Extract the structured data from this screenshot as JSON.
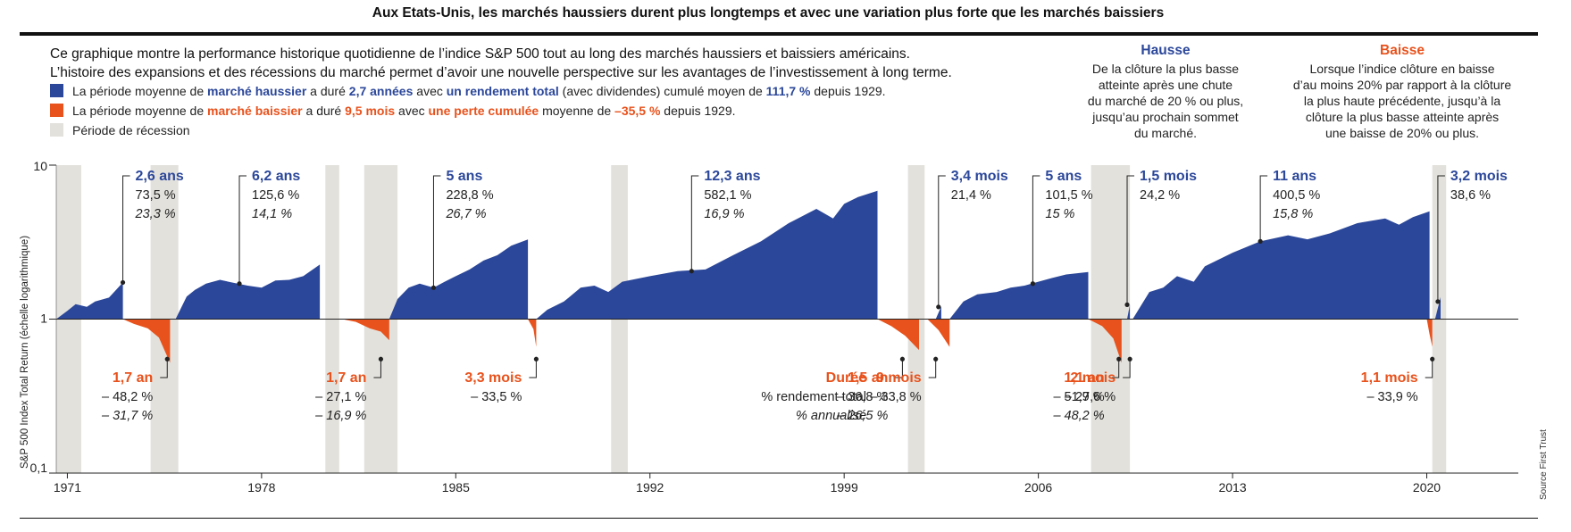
{
  "title": "Aux Etats-Unis, les marchés haussiers durent plus longtemps et avec une variation plus forte que les marchés baissiers",
  "intro": [
    "Ce graphique montre la performance historique quotidienne de l’indice S&P 500 tout au long des marchés haussiers et baissiers américains.",
    "L’histoire des expansions et des récessions du marché permet d’avoir une nouvelle perspective sur les avantages de l’investissement à long terme."
  ],
  "legend": {
    "bull": {
      "color": "#2b479a",
      "t1": "La période moyenne de ",
      "h1": "marché haussier",
      "t2": " a duré ",
      "h2": "2,7 années",
      "t3": " avec ",
      "h3": "un rendement total",
      "t4": " (avec dividendes) cumulé moyen de ",
      "h4": "111,7 %",
      "t5": " depuis 1929."
    },
    "bear": {
      "color": "#e8521c",
      "t1": "La période moyenne de ",
      "h1": "marché baissier",
      "t2": " a duré ",
      "h2": "9,5 mois",
      "t3": " avec ",
      "h3": "une perte cumulée",
      "t4": " moyenne de ",
      "h4": "–35,5 %",
      "t5": " depuis 1929."
    },
    "recession": {
      "color": "#e3e1dc",
      "label": "Période de récession"
    }
  },
  "definitions": {
    "hausse": {
      "title": "Hausse",
      "lines": [
        "De la clôture la plus basse",
        "atteinte après une chute",
        "du marché de 20 % ou plus,",
        "jusqu’au prochain sommet",
        "du marché."
      ]
    },
    "baisse": {
      "title": "Baisse",
      "lines": [
        "Lorsque l’indice clôture en baisse",
        "d’au moins 20% par rapport à la clôture",
        "la plus haute précédente, jusqu’à la",
        "clôture la plus basse atteinte après",
        "une baisse de 20% ou plus."
      ]
    }
  },
  "source": "Source First Trust",
  "chart_data": {
    "type": "area",
    "ylabel": "S&P 500 Index Total Return (échelle logarithmique)",
    "yscale": "log",
    "ylim": [
      0.1,
      10
    ],
    "yticks": [
      {
        "v": 10,
        "label": "10"
      },
      {
        "v": 1,
        "label": "1"
      },
      {
        "v": 0.1,
        "label": "0,1"
      }
    ],
    "xlim": [
      1970.6,
      2023.3
    ],
    "xticks": [
      {
        "v": 1971,
        "label": "1971"
      },
      {
        "v": 1978,
        "label": "1978"
      },
      {
        "v": 1985,
        "label": "1985"
      },
      {
        "v": 1992,
        "label": "1992"
      },
      {
        "v": 1999,
        "label": "1999"
      },
      {
        "v": 2006,
        "label": "2006"
      },
      {
        "v": 2013,
        "label": "2013"
      },
      {
        "v": 2020,
        "label": "2020"
      }
    ],
    "recessions": [
      [
        1970.6,
        1971.5
      ],
      [
        1974.0,
        1975.0
      ],
      [
        1980.3,
        1980.8
      ],
      [
        1981.7,
        1982.9
      ],
      [
        1990.6,
        1991.2
      ],
      [
        2001.3,
        2001.9
      ],
      [
        2007.9,
        2009.3
      ],
      [
        2020.2,
        2020.7
      ]
    ],
    "bull_markets": [
      {
        "start": 1970.6,
        "end": 1973.0,
        "points": [
          [
            1970.6,
            1.0
          ],
          [
            1971.0,
            1.13
          ],
          [
            1971.3,
            1.25
          ],
          [
            1971.7,
            1.2
          ],
          [
            1972.0,
            1.3
          ],
          [
            1972.5,
            1.38
          ],
          [
            1973.0,
            1.73
          ]
        ]
      },
      {
        "start": 1974.9,
        "end": 1980.1,
        "points": [
          [
            1974.9,
            1.0
          ],
          [
            1975.3,
            1.4
          ],
          [
            1975.6,
            1.55
          ],
          [
            1976.0,
            1.7
          ],
          [
            1976.5,
            1.8
          ],
          [
            1977.0,
            1.72
          ],
          [
            1977.5,
            1.65
          ],
          [
            1978.0,
            1.6
          ],
          [
            1978.5,
            1.78
          ],
          [
            1979.0,
            1.8
          ],
          [
            1979.5,
            1.9
          ],
          [
            1980.1,
            2.26
          ]
        ]
      },
      {
        "start": 1982.6,
        "end": 1987.6,
        "points": [
          [
            1982.6,
            1.0
          ],
          [
            1982.9,
            1.35
          ],
          [
            1983.3,
            1.6
          ],
          [
            1983.7,
            1.7
          ],
          [
            1984.2,
            1.6
          ],
          [
            1984.6,
            1.75
          ],
          [
            1985.0,
            1.9
          ],
          [
            1985.5,
            2.1
          ],
          [
            1986.0,
            2.4
          ],
          [
            1986.5,
            2.6
          ],
          [
            1987.0,
            3.0
          ],
          [
            1987.6,
            3.29
          ]
        ]
      },
      {
        "start": 1987.9,
        "end": 2000.2,
        "points": [
          [
            1987.9,
            1.0
          ],
          [
            1988.3,
            1.15
          ],
          [
            1988.9,
            1.3
          ],
          [
            1989.5,
            1.6
          ],
          [
            1990.0,
            1.65
          ],
          [
            1990.5,
            1.5
          ],
          [
            1991.0,
            1.75
          ],
          [
            1992.0,
            1.9
          ],
          [
            1993.0,
            2.05
          ],
          [
            1994.0,
            2.1
          ],
          [
            1995.0,
            2.6
          ],
          [
            1996.0,
            3.2
          ],
          [
            1997.0,
            4.2
          ],
          [
            1998.0,
            5.2
          ],
          [
            1998.6,
            4.5
          ],
          [
            1999.0,
            5.6
          ],
          [
            1999.5,
            6.2
          ],
          [
            2000.2,
            6.82
          ]
        ]
      },
      {
        "start": 2002.3,
        "end": 2002.5,
        "points": [
          [
            2002.3,
            1.0
          ],
          [
            2002.5,
            1.21
          ]
        ]
      },
      {
        "start": 2002.8,
        "end": 2007.8,
        "points": [
          [
            2002.8,
            1.0
          ],
          [
            2003.3,
            1.3
          ],
          [
            2003.8,
            1.45
          ],
          [
            2004.5,
            1.5
          ],
          [
            2005.0,
            1.6
          ],
          [
            2005.5,
            1.65
          ],
          [
            2006.0,
            1.75
          ],
          [
            2006.5,
            1.85
          ],
          [
            2007.0,
            1.95
          ],
          [
            2007.8,
            2.02
          ]
        ]
      },
      {
        "start": 2009.2,
        "end": 2009.3,
        "points": [
          [
            2009.2,
            1.0
          ],
          [
            2009.3,
            1.24
          ]
        ]
      },
      {
        "start": 2009.4,
        "end": 2020.1,
        "points": [
          [
            2009.4,
            1.0
          ],
          [
            2010.0,
            1.5
          ],
          [
            2010.5,
            1.6
          ],
          [
            2011.0,
            1.9
          ],
          [
            2011.6,
            1.75
          ],
          [
            2012.0,
            2.2
          ],
          [
            2013.0,
            2.7
          ],
          [
            2014.0,
            3.2
          ],
          [
            2015.0,
            3.5
          ],
          [
            2015.7,
            3.3
          ],
          [
            2016.5,
            3.6
          ],
          [
            2017.5,
            4.2
          ],
          [
            2018.5,
            4.5
          ],
          [
            2019.0,
            4.1
          ],
          [
            2019.5,
            4.6
          ],
          [
            2020.1,
            5.01
          ]
        ]
      },
      {
        "start": 2020.3,
        "end": 2020.5,
        "points": [
          [
            2020.3,
            1.0
          ],
          [
            2020.5,
            1.39
          ]
        ]
      }
    ],
    "bear_markets": [
      {
        "start": 1973.0,
        "end": 1974.7,
        "points": [
          [
            1973.0,
            1.0
          ],
          [
            1973.4,
            0.93
          ],
          [
            1973.9,
            0.87
          ],
          [
            1974.3,
            0.76
          ],
          [
            1974.7,
            0.52
          ]
        ]
      },
      {
        "start": 1980.9,
        "end": 1982.6,
        "points": [
          [
            1980.9,
            1.0
          ],
          [
            1981.4,
            0.96
          ],
          [
            1981.9,
            0.87
          ],
          [
            1982.3,
            0.83
          ],
          [
            1982.6,
            0.73
          ]
        ]
      },
      {
        "start": 1987.6,
        "end": 1987.9,
        "points": [
          [
            1987.6,
            1.0
          ],
          [
            1987.8,
            0.86
          ],
          [
            1987.9,
            0.66
          ]
        ]
      },
      {
        "start": 2000.2,
        "end": 2001.7,
        "points": [
          [
            2000.2,
            1.0
          ],
          [
            2000.7,
            0.9
          ],
          [
            2001.2,
            0.78
          ],
          [
            2001.7,
            0.63
          ]
        ]
      },
      {
        "start": 2002.0,
        "end": 2002.8,
        "points": [
          [
            2002.0,
            1.0
          ],
          [
            2002.4,
            0.85
          ],
          [
            2002.8,
            0.66
          ]
        ]
      },
      {
        "start": 2007.8,
        "end": 2009.0,
        "points": [
          [
            2007.8,
            1.0
          ],
          [
            2008.3,
            0.9
          ],
          [
            2008.7,
            0.75
          ],
          [
            2009.0,
            0.52
          ]
        ]
      },
      {
        "start": 2020.0,
        "end": 2020.2,
        "points": [
          [
            2020.0,
            1.0
          ],
          [
            2020.1,
            0.8
          ],
          [
            2020.2,
            0.66
          ]
        ]
      }
    ],
    "annotations": [
      {
        "kind": "bull",
        "at": [
          1973.0,
          1.73
        ],
        "duration": "2,6 ans",
        "total": "73,5 %",
        "annual": "23,3 %"
      },
      {
        "kind": "bull",
        "at": [
          1977.2,
          1.7
        ],
        "duration": "6,2 ans",
        "total": "125,6 %",
        "annual": "14,1 %"
      },
      {
        "kind": "bull",
        "at": [
          1984.2,
          1.6
        ],
        "duration": "5 ans",
        "total": "228,8 %",
        "annual": "26,7 %"
      },
      {
        "kind": "bull",
        "at": [
          1993.5,
          2.05
        ],
        "duration": "12,3 ans",
        "total": "582,1 %",
        "annual": "16,9 %"
      },
      {
        "kind": "bull",
        "at": [
          2002.4,
          1.2
        ],
        "duration": "3,4 mois",
        "total": "21,4 %",
        "annual": ""
      },
      {
        "kind": "bull",
        "at": [
          2005.8,
          1.7
        ],
        "duration": "5 ans",
        "total": "101,5 %",
        "annual": "15 %"
      },
      {
        "kind": "bull",
        "at": [
          2009.2,
          1.24
        ],
        "duration": "1,5 mois",
        "total": "24,2 %",
        "annual": ""
      },
      {
        "kind": "bull",
        "at": [
          2014.0,
          3.2
        ],
        "duration": "11 ans",
        "total": "400,5 %",
        "annual": "15,8 %"
      },
      {
        "kind": "bull",
        "at": [
          2020.4,
          1.3
        ],
        "duration": "3,2 mois",
        "total": "38,6 %",
        "annual": ""
      },
      {
        "kind": "bear",
        "at": [
          1974.6,
          0.55
        ],
        "duration": "1,7 an",
        "total": "– 48,2 %",
        "annual": "– 31,7 %"
      },
      {
        "kind": "bear",
        "at": [
          1982.3,
          0.55
        ],
        "duration": "1,7 an",
        "total": "– 27,1 %",
        "annual": "– 16,9 %"
      },
      {
        "kind": "bear",
        "at": [
          1987.9,
          0.55
        ],
        "duration": "3,3 mois",
        "total": "– 33,5 %",
        "annual": ""
      },
      {
        "kind": "bear",
        "at": [
          2001.1,
          0.55
        ],
        "duration": "1,5 an",
        "total": "– 36,8 %",
        "annual": "– 26,5 %"
      },
      {
        "kind": "bear",
        "at": [
          2002.3,
          0.55
        ],
        "duration": "9 mois",
        "total": "– 33,8 %",
        "annual": ""
      },
      {
        "kind": "bear",
        "at": [
          2008.9,
          0.55
        ],
        "duration": "1,1 an",
        "total": "– 51,9 %",
        "annual": "– 48,2 %"
      },
      {
        "kind": "bear",
        "at": [
          2009.3,
          0.55
        ],
        "duration": "2 mois",
        "total": "– 27,6 %",
        "annual": ""
      },
      {
        "kind": "bear",
        "at": [
          2020.2,
          0.55
        ],
        "duration": "1,1 mois",
        "total": "– 33,9 %",
        "annual": ""
      }
    ],
    "key": {
      "duration": "Durée",
      "total": "% rendement total",
      "annual": "% annualisé"
    }
  }
}
